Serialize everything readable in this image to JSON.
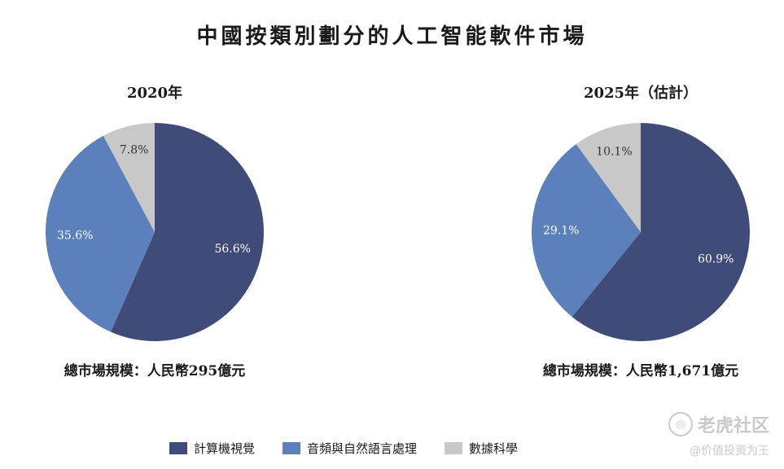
{
  "title": "中國按類別劃分的人工智能軟件市場",
  "colors": {
    "computer_vision": "#414b79",
    "speech_nlp": "#5b80bb",
    "data_science": "#c8c8c9"
  },
  "legend": [
    {
      "label": "計算機視覺",
      "color_key": "computer_vision"
    },
    {
      "label": "音頻與自然語言處理",
      "color_key": "speech_nlp"
    },
    {
      "label": "數據科學",
      "color_key": "data_science"
    }
  ],
  "chart_data": [
    {
      "type": "pie",
      "title": "2020年",
      "categories": [
        "計算機視覺",
        "音頻與自然語言處理",
        "數據科學"
      ],
      "values": [
        56.6,
        35.6,
        7.8
      ],
      "labels": [
        "56.6%",
        "35.6%",
        "7.8%"
      ],
      "start": "12 o'clock",
      "direction": "clockwise",
      "total": "總市場規模：人民幣295億元"
    },
    {
      "type": "pie",
      "title": "2025年（估計）",
      "categories": [
        "計算機視覺",
        "音頻與自然語言處理",
        "數據科學"
      ],
      "values": [
        60.9,
        29.1,
        10.1
      ],
      "labels": [
        "60.9%",
        "29.1%",
        "10.1%"
      ],
      "start": "12 o'clock",
      "direction": "clockwise",
      "total": "總市場規模：人民幣1,671億元"
    }
  ],
  "watermark": {
    "logo_text": "老虎社区",
    "sub_text": "@价值投资为王"
  }
}
